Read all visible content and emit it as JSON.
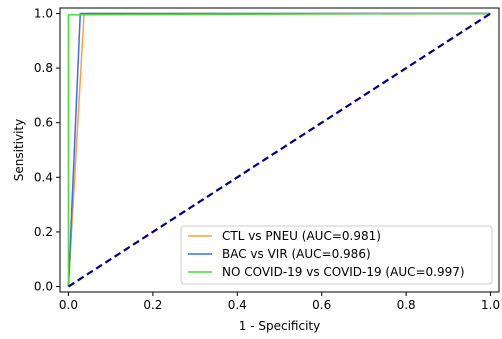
{
  "chart_data": {
    "type": "line",
    "title": "",
    "xlabel": "1 - Specificity",
    "ylabel": "Sensitivity",
    "xlim": [
      -0.02,
      1.02
    ],
    "ylim": [
      -0.02,
      1.02
    ],
    "xticks": [
      0.0,
      0.2,
      0.4,
      0.6,
      0.8,
      1.0
    ],
    "yticks": [
      0.0,
      0.2,
      0.4,
      0.6,
      0.8,
      1.0
    ],
    "xtick_labels": [
      "0.0",
      "0.2",
      "0.4",
      "0.6",
      "0.8",
      "1.0"
    ],
    "ytick_labels": [
      "0.0",
      "0.2",
      "0.4",
      "0.6",
      "0.8",
      "1.0"
    ],
    "grid": false,
    "legend_position": "bottom-right",
    "series": [
      {
        "name": "CTL vs PNEU (AUC=0.981)",
        "color": "#ffa040",
        "points": [
          [
            0.0,
            0.0
          ],
          [
            0.037,
            1.0
          ],
          [
            1.0,
            1.0
          ]
        ]
      },
      {
        "name": "BAC vs VIR (AUC=0.986)",
        "color": "#3a6ff0",
        "points": [
          [
            0.0,
            0.0
          ],
          [
            0.028,
            1.0
          ],
          [
            1.0,
            1.0
          ]
        ]
      },
      {
        "name": "NO COVID-19 vs COVID-19 (AUC=0.997)",
        "color": "#4bdc3c",
        "points": [
          [
            0.0,
            0.0
          ],
          [
            0.0,
            0.995
          ],
          [
            1.0,
            1.0
          ]
        ]
      }
    ],
    "reference_line": {
      "points": [
        [
          0.0,
          0.0
        ],
        [
          1.0,
          1.0
        ]
      ],
      "color": "#000080",
      "style": "dashed"
    }
  }
}
